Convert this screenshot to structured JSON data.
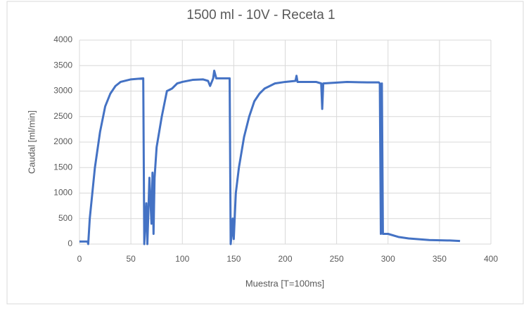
{
  "chart_data": {
    "type": "line",
    "title": "1500 ml - 10V - Receta 1",
    "x_label": "Muestra [T=100ms]",
    "y_label": "Caudal [ml/min]",
    "x": [
      0,
      8,
      8.5,
      10,
      15,
      20,
      25,
      30,
      35,
      40,
      50,
      62,
      63,
      65,
      66,
      68,
      70,
      71,
      72,
      73,
      75,
      80,
      84,
      85,
      90,
      95,
      100,
      110,
      120,
      125,
      127,
      130,
      131,
      133,
      140,
      146,
      147,
      148,
      149,
      150,
      152,
      155,
      160,
      165,
      170,
      175,
      180,
      190,
      200,
      210,
      211,
      212,
      230,
      235,
      236,
      237,
      260,
      280,
      291,
      292,
      293,
      294,
      295,
      300,
      310,
      320,
      340,
      360,
      370
    ],
    "series": [
      {
        "name": "Caudal",
        "color": "#4472c4",
        "values": [
          50,
          50,
          0,
          500,
          1500,
          2200,
          2700,
          2950,
          3100,
          3180,
          3230,
          3250,
          0,
          800,
          0,
          1300,
          400,
          1400,
          200,
          1300,
          1900,
          2500,
          2900,
          3000,
          3050,
          3150,
          3180,
          3220,
          3230,
          3200,
          3100,
          3250,
          3400,
          3250,
          3250,
          3250,
          0,
          200,
          500,
          100,
          1000,
          1500,
          2100,
          2500,
          2800,
          2950,
          3050,
          3150,
          3180,
          3200,
          3300,
          3180,
          3180,
          3150,
          2650,
          3150,
          3180,
          3170,
          3170,
          3150,
          200,
          3150,
          200,
          200,
          140,
          110,
          80,
          70,
          60
        ]
      }
    ],
    "xlim": [
      0,
      400
    ],
    "xticks": [
      0,
      50,
      100,
      150,
      200,
      250,
      300,
      350,
      400
    ],
    "ylim": [
      0,
      4000
    ],
    "yticks": [
      0,
      500,
      1000,
      1500,
      2000,
      2500,
      3000,
      3500,
      4000
    ],
    "grid": true
  }
}
